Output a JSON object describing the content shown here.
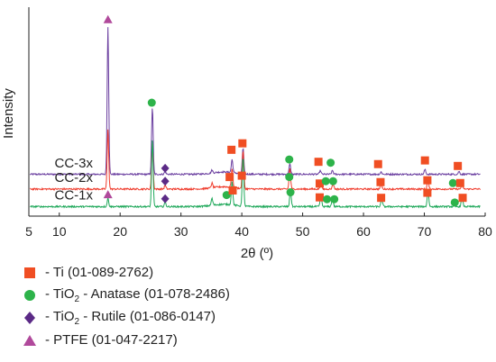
{
  "chart_data": {
    "type": "line",
    "xlabel": "2θ (º)",
    "ylabel": "Intensity",
    "xlim": [
      5,
      80
    ],
    "x_ticks": [
      5,
      10,
      20,
      30,
      40,
      50,
      60,
      70,
      80
    ],
    "y_ticks_shown": false,
    "grid": false,
    "colors": {
      "CC-3x": "#6b3fa0",
      "CC-2x": "#ef3b2c",
      "CC-1x": "#1fa85a",
      "Ti": "#f04e23",
      "Anatase": "#2db34a",
      "Rutile": "#5b2a86",
      "PTFE": "#b0499b"
    },
    "series": [
      {
        "name": "CC-3x",
        "baseline": 0.7,
        "peaks": [
          {
            "x": 18.0,
            "h": 3.2
          },
          {
            "x": 25.3,
            "h": 1.45
          },
          {
            "x": 27.4,
            "h": 0.06
          },
          {
            "x": 35.1,
            "h": 0.06
          },
          {
            "x": 38.4,
            "h": 0.28
          },
          {
            "x": 40.2,
            "h": 0.55
          },
          {
            "x": 47.9,
            "h": 0.22
          },
          {
            "x": 52.9,
            "h": 0.08
          },
          {
            "x": 54.9,
            "h": 0.08
          },
          {
            "x": 62.9,
            "h": 0.05
          },
          {
            "x": 70.1,
            "h": 0.1
          },
          {
            "x": 75.7,
            "h": 0.06
          }
        ]
      },
      {
        "name": "CC-2x",
        "baseline": 0.38,
        "peaks": [
          {
            "x": 18.0,
            "h": 1.28
          },
          {
            "x": 25.3,
            "h": 1.0
          },
          {
            "x": 27.4,
            "h": 0.08
          },
          {
            "x": 35.1,
            "h": 0.1
          },
          {
            "x": 38.4,
            "h": 0.4
          },
          {
            "x": 40.2,
            "h": 0.82
          },
          {
            "x": 47.9,
            "h": 0.45
          },
          {
            "x": 53.0,
            "h": 0.12
          },
          {
            "x": 55.0,
            "h": 0.12
          },
          {
            "x": 62.9,
            "h": 0.1
          },
          {
            "x": 70.6,
            "h": 0.2
          },
          {
            "x": 76.2,
            "h": 0.12
          }
        ]
      },
      {
        "name": "CC-1x",
        "baseline": 0.0,
        "peaks": [
          {
            "x": 18.0,
            "h": 0.18
          },
          {
            "x": 25.3,
            "h": 1.45
          },
          {
            "x": 27.4,
            "h": 0.1
          },
          {
            "x": 35.1,
            "h": 0.15
          },
          {
            "x": 38.4,
            "h": 0.5
          },
          {
            "x": 40.2,
            "h": 1.05
          },
          {
            "x": 48.0,
            "h": 0.35
          },
          {
            "x": 53.0,
            "h": 0.24
          },
          {
            "x": 54.9,
            "h": 0.2
          },
          {
            "x": 63.0,
            "h": 0.18
          },
          {
            "x": 70.6,
            "h": 0.35
          },
          {
            "x": 76.2,
            "h": 0.22
          }
        ]
      }
    ],
    "markers": [
      {
        "series": "CC-3x",
        "type": "PTFE",
        "x": 18.0,
        "y": 4.1
      },
      {
        "series": "CC-3x",
        "type": "Anatase",
        "x": 25.2,
        "y": 2.3
      },
      {
        "series": "CC-3x",
        "type": "Rutile",
        "x": 27.4,
        "y": 0.88
      },
      {
        "series": "CC-3x",
        "type": "Ti",
        "x": 38.3,
        "y": 1.28
      },
      {
        "series": "CC-3x",
        "type": "Ti",
        "x": 40.1,
        "y": 1.42
      },
      {
        "series": "CC-3x",
        "type": "Anatase",
        "x": 47.8,
        "y": 1.07
      },
      {
        "series": "CC-3x",
        "type": "Ti",
        "x": 52.6,
        "y": 1.02
      },
      {
        "series": "CC-3x",
        "type": "Anatase",
        "x": 54.6,
        "y": 1.0
      },
      {
        "series": "CC-3x",
        "type": "Ti",
        "x": 62.4,
        "y": 0.97
      },
      {
        "series": "CC-3x",
        "type": "Ti",
        "x": 70.1,
        "y": 1.05
      },
      {
        "series": "CC-3x",
        "type": "Ti",
        "x": 75.5,
        "y": 0.93
      },
      {
        "series": "CC-2x",
        "type": "Rutile",
        "x": 27.4,
        "y": 0.6
      },
      {
        "series": "CC-2x",
        "type": "Ti",
        "x": 38.0,
        "y": 0.69
      },
      {
        "series": "CC-2x",
        "type": "Ti",
        "x": 40.0,
        "y": 0.72
      },
      {
        "series": "CC-2x",
        "type": "Anatase",
        "x": 47.8,
        "y": 0.69
      },
      {
        "series": "CC-2x",
        "type": "Ti",
        "x": 52.8,
        "y": 0.55
      },
      {
        "series": "CC-2x",
        "type": "Anatase",
        "x": 53.8,
        "y": 0.6
      },
      {
        "series": "CC-2x",
        "type": "Anatase",
        "x": 55.0,
        "y": 0.6
      },
      {
        "series": "CC-2x",
        "type": "Ti",
        "x": 62.8,
        "y": 0.58
      },
      {
        "series": "CC-2x",
        "type": "Ti",
        "x": 70.5,
        "y": 0.62
      },
      {
        "series": "CC-2x",
        "type": "Anatase",
        "x": 74.7,
        "y": 0.56
      },
      {
        "series": "CC-2x",
        "type": "Ti",
        "x": 75.9,
        "y": 0.56
      },
      {
        "series": "CC-1x",
        "type": "PTFE",
        "x": 18.0,
        "y": 0.31
      },
      {
        "series": "CC-1x",
        "type": "Rutile",
        "x": 27.4,
        "y": 0.22
      },
      {
        "series": "CC-1x",
        "type": "Anatase",
        "x": 37.5,
        "y": 0.3
      },
      {
        "series": "CC-1x",
        "type": "Ti",
        "x": 38.5,
        "y": 0.4
      },
      {
        "series": "CC-1x",
        "type": "Anatase",
        "x": 48.0,
        "y": 0.36
      },
      {
        "series": "CC-1x",
        "type": "Ti",
        "x": 52.8,
        "y": 0.25
      },
      {
        "series": "CC-1x",
        "type": "Anatase",
        "x": 54.0,
        "y": 0.21
      },
      {
        "series": "CC-1x",
        "type": "Anatase",
        "x": 55.2,
        "y": 0.21
      },
      {
        "series": "CC-1x",
        "type": "Ti",
        "x": 62.9,
        "y": 0.24
      },
      {
        "series": "CC-1x",
        "type": "Ti",
        "x": 70.5,
        "y": 0.35
      },
      {
        "series": "CC-1x",
        "type": "Anatase",
        "x": 75.0,
        "y": 0.14
      },
      {
        "series": "CC-1x",
        "type": "Ti",
        "x": 76.3,
        "y": 0.24
      }
    ],
    "legend": {
      "placement": "bottom-left",
      "entries": [
        {
          "type": "Ti",
          "shape": "square",
          "text": "- Ti (01-089-2762)"
        },
        {
          "type": "Anatase",
          "shape": "circle",
          "pre": "- TiO",
          "sub": "2",
          "post": " - Anatase (01-078-2486)"
        },
        {
          "type": "Rutile",
          "shape": "diamond",
          "pre": "- TiO",
          "sub": "2",
          "post": " - Rutile (01-086-0147)"
        },
        {
          "type": "PTFE",
          "shape": "triangle",
          "text": "- PTFE (01-047-2217)"
        }
      ]
    }
  }
}
